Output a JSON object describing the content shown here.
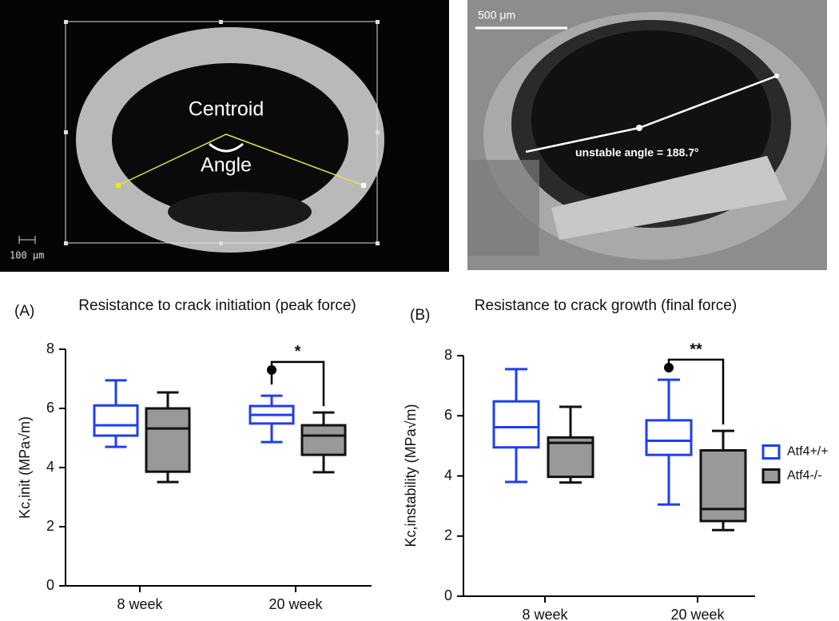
{
  "images": [
    {
      "labels": [
        "Centroid",
        "Angle"
      ],
      "scale_bar": "100 μm"
    },
    {
      "scale_bar": "500 μm",
      "annotation": "unstable angle = 188.7°"
    }
  ],
  "chart_data": [
    {
      "type": "box",
      "panel": "(A)",
      "title": "Resistance to crack initiation (peak force)",
      "ylabel": "Kc,init (MPa√m)",
      "categories": [
        "8 week",
        "20 week"
      ],
      "ylim": [
        0,
        8
      ],
      "yticks": [
        0,
        2,
        4,
        6,
        8
      ],
      "series": [
        {
          "color": "#1f3ff0",
          "min": [
            4.7,
            4.86
          ],
          "q1": [
            5.08,
            5.49
          ],
          "median": [
            5.43,
            5.78
          ],
          "q3": [
            6.1,
            6.08
          ],
          "max": [
            6.95,
            6.43
          ],
          "outliers": [
            [],
            [
              7.3
            ]
          ]
        },
        {
          "color": "#999999",
          "min": [
            3.51,
            3.84
          ],
          "q1": [
            3.86,
            4.43
          ],
          "median": [
            5.32,
            5.08
          ],
          "q3": [
            6.0,
            5.43
          ],
          "max": [
            6.54,
            5.86
          ],
          "outliers": [
            [],
            []
          ]
        }
      ],
      "annotations": [
        {
          "text": "*"
        }
      ]
    },
    {
      "type": "box",
      "panel": "(B)",
      "title": "Resistance to crack growth (final force)",
      "ylabel": "Kc,instability (MPa√m)",
      "categories": [
        "8 week",
        "20 week"
      ],
      "ylim": [
        0,
        8
      ],
      "yticks": [
        0,
        2,
        4,
        6,
        8
      ],
      "legend": "right",
      "series": [
        {
          "name": "Atf4+/+",
          "color": "#1f3ff0",
          "min": [
            3.8,
            3.05
          ],
          "q1": [
            4.95,
            4.7
          ],
          "median": [
            5.62,
            5.17
          ],
          "q3": [
            6.48,
            5.85
          ],
          "max": [
            7.55,
            7.2
          ],
          "outliers": [
            [],
            [
              7.6
            ]
          ]
        },
        {
          "name": "Atf4-/-",
          "color": "#999999",
          "min": [
            3.78,
            2.2
          ],
          "q1": [
            3.97,
            2.5
          ],
          "median": [
            5.1,
            2.9
          ],
          "q3": [
            5.28,
            4.85
          ],
          "max": [
            6.3,
            5.5
          ],
          "outliers": [
            [],
            []
          ]
        }
      ],
      "annotations": [
        {
          "text": "**"
        }
      ]
    }
  ]
}
